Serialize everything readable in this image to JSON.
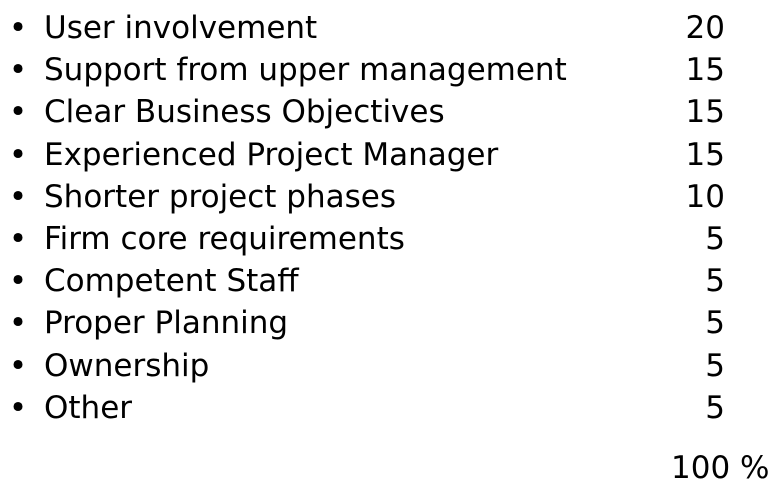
{
  "items": [
    {
      "label": "User involvement",
      "value": "20"
    },
    {
      "label": "Support from upper management",
      "value": "15"
    },
    {
      "label": "Clear Business Objectives",
      "value": "15"
    },
    {
      "label": "Experienced Project Manager",
      "value": "15"
    },
    {
      "label": "Shorter project phases",
      "value": "10"
    },
    {
      "label": "Firm core requirements",
      "value": "5"
    },
    {
      "label": "Competent Staff",
      "value": "5"
    },
    {
      "label": "Proper Planning",
      "value": "5"
    },
    {
      "label": "Ownership",
      "value": "5"
    },
    {
      "label": "Other",
      "value": "5"
    }
  ],
  "total": "100 %",
  "bullet_glyph": "•"
}
